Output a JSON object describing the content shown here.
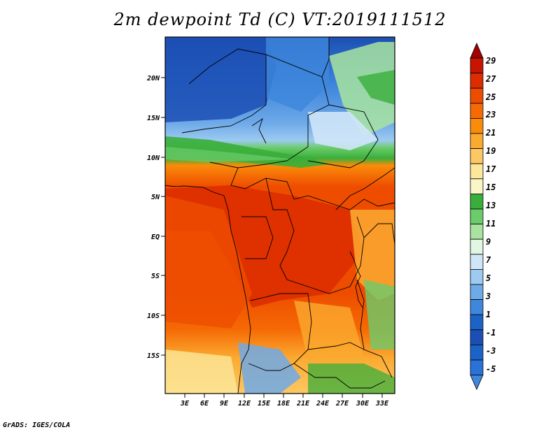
{
  "title": "2m dewpoint Td (C) VT:2019111512",
  "credit": "GrADS: IGES/COLA",
  "map": {
    "lat_range": [
      -19,
      25
    ],
    "lon_range": [
      0,
      35
    ],
    "lat_ticks": [
      "20N",
      "15N",
      "10N",
      "5N",
      "EQ",
      "5S",
      "10S",
      "15S"
    ],
    "lon_ticks": [
      "3E",
      "6E",
      "9E",
      "12E",
      "15E",
      "18E",
      "21E",
      "24E",
      "27E",
      "30E",
      "33E"
    ]
  },
  "colorbar": {
    "labels": [
      "29",
      "27",
      "25",
      "23",
      "21",
      "19",
      "17",
      "15",
      "13",
      "11",
      "9",
      "7",
      "5",
      "3",
      "1",
      "-1",
      "-3",
      "-5"
    ],
    "colors": [
      "#a50000",
      "#c81400",
      "#dc2c00",
      "#ee4d00",
      "#f56a05",
      "#fa8c0a",
      "#fbaa30",
      "#fcc864",
      "#fde79a",
      "#fbf5c8",
      "#3aae3a",
      "#6ccc6c",
      "#a8e4a0",
      "#e2f7e2",
      "#cfe6f8",
      "#9ccaf0",
      "#6ea9e8",
      "#3f87dc",
      "#1c63c8",
      "#1c4fb4"
    ]
  }
}
